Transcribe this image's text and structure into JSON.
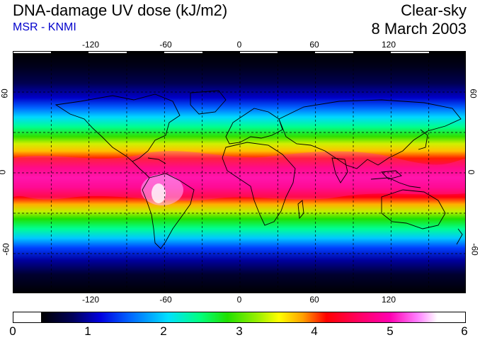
{
  "header": {
    "title": "DNA-damage UV dose (kJ/m2)",
    "subtitle": "MSR - KNMI",
    "mode": "Clear-sky",
    "date": "8 March 2003"
  },
  "colors": {
    "subtitle": "#0000cc",
    "scale": [
      "#000000",
      "#00005a",
      "#0000e0",
      "#0060ff",
      "#00e0ff",
      "#00ff80",
      "#20e000",
      "#a0f000",
      "#ffff00",
      "#ffa000",
      "#ff0000",
      "#ff0060",
      "#ff00b0",
      "#ff80ff",
      "#ffffff"
    ]
  },
  "map": {
    "lon_ticks": [
      "-120",
      "-60",
      "0",
      "60",
      "120"
    ],
    "lat_ticks_left": [
      "60",
      "0",
      "-60"
    ],
    "lat_ticks_right": [
      "60",
      "0",
      "-60"
    ],
    "lon_range": [
      -180,
      180
    ],
    "lat_range": [
      -90,
      90
    ],
    "grid": "dashed, every 30 degrees"
  },
  "colorbar": {
    "ticks": [
      "0",
      "1",
      "2",
      "3",
      "4",
      "5",
      "6"
    ],
    "range": [
      0,
      6
    ]
  }
}
